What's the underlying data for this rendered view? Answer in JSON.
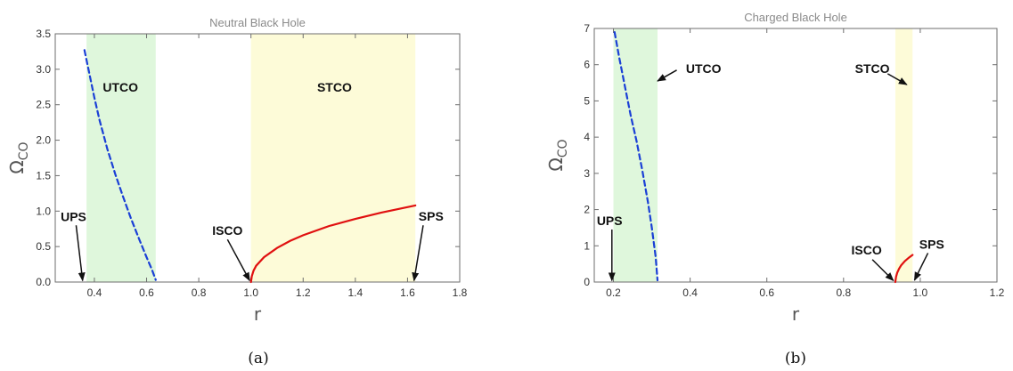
{
  "panels": [
    {
      "caption": "(a)",
      "chart_data": {
        "type": "line",
        "title": "Neutral Black Hole",
        "xlabel": "r",
        "ylabel": "Ω",
        "ylabel_sub": "CO",
        "xlim": [
          0.25,
          1.8
        ],
        "ylim": [
          0,
          3.5
        ],
        "xticks": [
          0.4,
          0.6,
          0.8,
          1.0,
          1.2,
          1.4,
          1.6,
          1.8
        ],
        "xtick_labels": [
          "0.4",
          "0.6",
          "0.8",
          "1.0",
          "1.2",
          "1.4",
          "1.6",
          "1.8"
        ],
        "yticks": [
          0,
          0.5,
          1.0,
          1.5,
          2.0,
          2.5,
          3.0,
          3.5
        ],
        "ytick_labels": [
          "0.0",
          "0.5",
          "1.0",
          "1.5",
          "2.0",
          "2.5",
          "3.0",
          "3.5"
        ],
        "regions": [
          {
            "x0": 0.37,
            "x1": 0.635,
            "color": "#dff7dc"
          },
          {
            "x0": 1.0,
            "x1": 1.63,
            "color": "#fdfbd8"
          }
        ],
        "series": [
          {
            "style": "dashed",
            "color": "#1a3fd6",
            "x": [
              0.362,
              0.38,
              0.4,
              0.42,
              0.45,
              0.48,
              0.51,
              0.54,
              0.57,
              0.6,
              0.62,
              0.635
            ],
            "y": [
              3.27,
              2.95,
              2.6,
              2.28,
              1.87,
              1.52,
              1.2,
              0.9,
              0.62,
              0.35,
              0.18,
              0.03
            ]
          },
          {
            "style": "solid",
            "color": "#e01010",
            "x": [
              1.0,
              1.003,
              1.01,
              1.02,
              1.05,
              1.1,
              1.15,
              1.2,
              1.3,
              1.4,
              1.5,
              1.63
            ],
            "y": [
              0.0,
              0.08,
              0.16,
              0.23,
              0.35,
              0.48,
              0.58,
              0.66,
              0.79,
              0.89,
              0.98,
              1.08
            ]
          }
        ],
        "annotations": [
          {
            "text": "UTCO",
            "tx": 0.5,
            "ty": 2.75
          },
          {
            "text": "STCO",
            "tx": 1.32,
            "ty": 2.75
          },
          {
            "text": "UPS",
            "tx": 0.32,
            "ty": 0.92,
            "ax": 0.33,
            "ay": 0.8,
            "hx": 0.355,
            "hy": 0.02
          },
          {
            "text": "ISCO",
            "tx": 0.91,
            "ty": 0.73,
            "ax": 0.91,
            "ay": 0.6,
            "hx": 0.995,
            "hy": 0.02
          },
          {
            "text": "SPS",
            "tx": 1.69,
            "ty": 0.93,
            "ax": 1.66,
            "ay": 0.8,
            "hx": 1.625,
            "hy": 0.02
          }
        ]
      }
    },
    {
      "caption": "(b)",
      "chart_data": {
        "type": "line",
        "title": "Charged Black Hole",
        "xlabel": "r",
        "ylabel": "Ω",
        "ylabel_sub": "CO",
        "xlim": [
          0.15,
          1.2
        ],
        "ylim": [
          0,
          7
        ],
        "xticks": [
          0.2,
          0.4,
          0.6,
          0.8,
          1.0,
          1.2
        ],
        "xtick_labels": [
          "0.2",
          "0.4",
          "0.6",
          "0.8",
          "1.0",
          "1.2"
        ],
        "yticks": [
          0,
          1,
          2,
          3,
          4,
          5,
          6,
          7
        ],
        "ytick_labels": [
          "0",
          "1",
          "2",
          "3",
          "4",
          "5",
          "6",
          "7"
        ],
        "regions": [
          {
            "x0": 0.2,
            "x1": 0.315,
            "color": "#dff7dc"
          },
          {
            "x0": 0.935,
            "x1": 0.98,
            "color": "#fdfbd8"
          }
        ],
        "series": [
          {
            "style": "dashed",
            "color": "#1a3fd6",
            "x": [
              0.203,
              0.215,
              0.23,
              0.245,
              0.26,
              0.275,
              0.29,
              0.3,
              0.31,
              0.315
            ],
            "y": [
              6.9,
              6.2,
              5.4,
              4.6,
              3.9,
              3.1,
              2.2,
              1.5,
              0.7,
              0.05
            ]
          },
          {
            "style": "solid",
            "color": "#e01010",
            "x": [
              0.935,
              0.937,
              0.94,
              0.945,
              0.95,
              0.96,
              0.97,
              0.98
            ],
            "y": [
              0.0,
              0.15,
              0.26,
              0.37,
              0.46,
              0.58,
              0.67,
              0.75
            ]
          }
        ],
        "annotations": [
          {
            "text": "UTCO",
            "tx": 0.435,
            "ty": 5.9,
            "ax": 0.365,
            "ay": 5.85,
            "hx": 0.315,
            "hy": 5.55
          },
          {
            "text": "STCO",
            "tx": 0.875,
            "ty": 5.9,
            "ax": 0.915,
            "ay": 5.75,
            "hx": 0.965,
            "hy": 5.45
          },
          {
            "text": "UPS",
            "tx": 0.19,
            "ty": 1.7,
            "ax": 0.196,
            "ay": 1.45,
            "hx": 0.196,
            "hy": 0.04
          },
          {
            "text": "ISCO",
            "tx": 0.86,
            "ty": 0.88,
            "ax": 0.875,
            "ay": 0.62,
            "hx": 0.93,
            "hy": 0.04
          },
          {
            "text": "SPS",
            "tx": 1.03,
            "ty": 1.05,
            "ax": 1.02,
            "ay": 0.8,
            "hx": 0.985,
            "hy": 0.05
          }
        ]
      }
    }
  ]
}
